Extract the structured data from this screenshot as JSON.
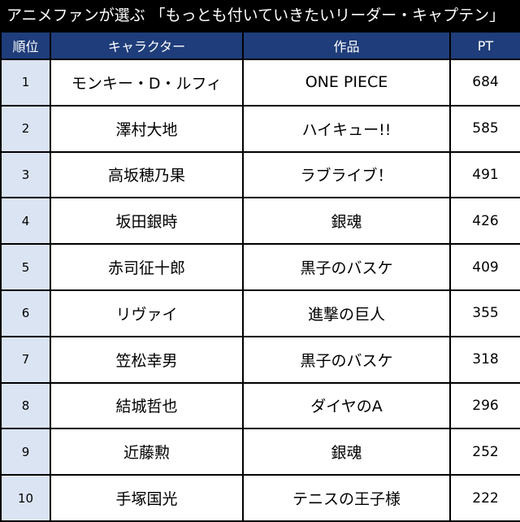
{
  "title": "アニメファンが選ぶ 「もっとも付いていきたいリーダー・キャプテン」",
  "columns": {
    "rank": "順位",
    "character": "キャラクター",
    "work": "作品",
    "points": "PT"
  },
  "rows": [
    {
      "rank": "1",
      "character": "モンキー・D・ルフィ",
      "work": "ONE PIECE",
      "points": "684"
    },
    {
      "rank": "2",
      "character": "澤村大地",
      "work": "ハイキュー!!",
      "points": "585"
    },
    {
      "rank": "3",
      "character": "高坂穂乃果",
      "work": "ラブライブ！",
      "points": "491"
    },
    {
      "rank": "4",
      "character": "坂田銀時",
      "work": "銀魂",
      "points": "426"
    },
    {
      "rank": "5",
      "character": "赤司征十郎",
      "work": "黒子のバスケ",
      "points": "409"
    },
    {
      "rank": "6",
      "character": "リヴァイ",
      "work": "進撃の巨人",
      "points": "355"
    },
    {
      "rank": "7",
      "character": "笠松幸男",
      "work": "黒子のバスケ",
      "points": "318"
    },
    {
      "rank": "8",
      "character": "結城哲也",
      "work": "ダイヤのA",
      "points": "296"
    },
    {
      "rank": "9",
      "character": "近藤勲",
      "work": "銀魂",
      "points": "252"
    },
    {
      "rank": "10",
      "character": "手塚国光",
      "work": "テニスの王子様",
      "points": "222"
    }
  ],
  "colors": {
    "title_background": "#000000",
    "header_background": "#1f3d7a",
    "rank_cell_background": "#dbe4f3",
    "border": "#000000"
  }
}
